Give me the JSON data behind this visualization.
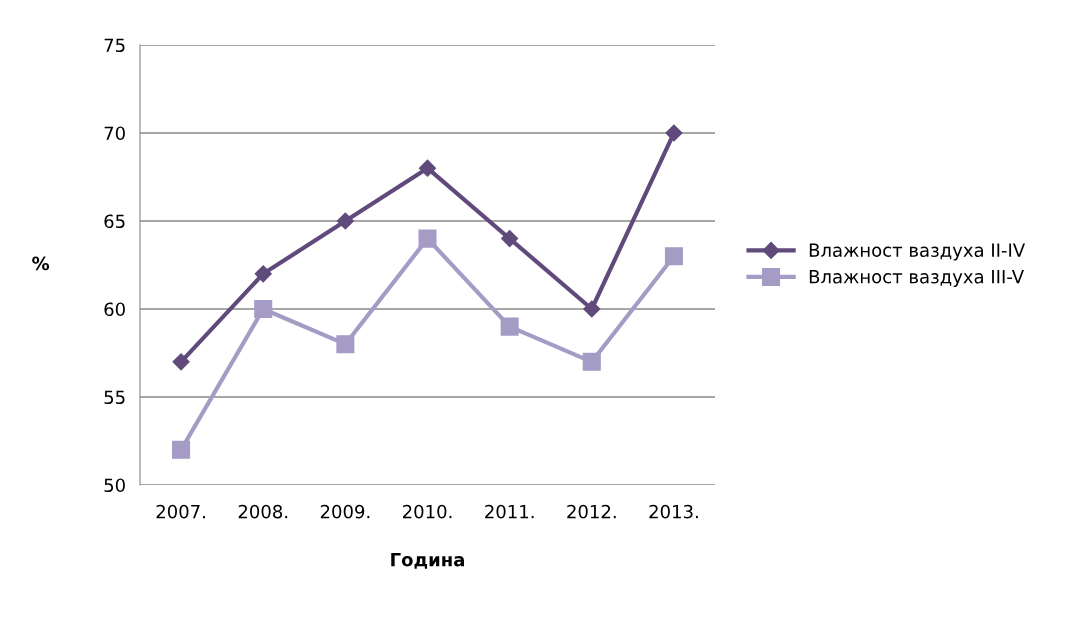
{
  "chart_data": {
    "type": "line",
    "xlabel": "Година",
    "ylabel": "%",
    "categories": [
      "2007.",
      "2008.",
      "2009.",
      "2010.",
      "2011.",
      "2012.",
      "2013."
    ],
    "series": [
      {
        "name": "Влажност ваздуха II-IV",
        "color": "#604a7b",
        "marker": "diamond",
        "values": [
          57,
          62,
          65,
          68,
          64,
          60,
          70
        ]
      },
      {
        "name": "Влажност ваздуха III-V",
        "color": "#a59cc6",
        "marker": "square",
        "values": [
          52,
          60,
          58,
          64,
          59,
          57,
          63
        ]
      }
    ],
    "ylim": [
      50,
      75
    ],
    "yticks": [
      50,
      55,
      60,
      65,
      70,
      75
    ],
    "grid": "y",
    "legend": "right",
    "line_style": "solid"
  }
}
